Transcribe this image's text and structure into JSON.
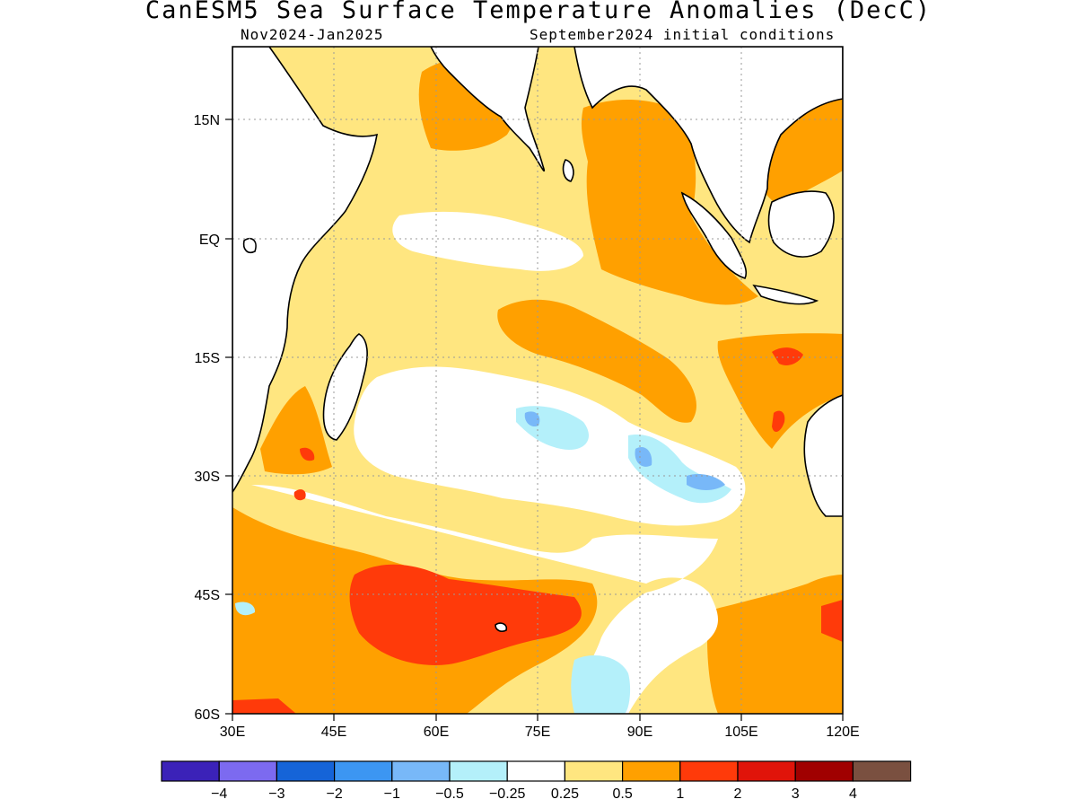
{
  "title": "CanESM5 Sea Surface Temperature Anomalies (DecC)",
  "subtitle_left": "Nov2024-Jan2025",
  "subtitle_right": "September2024 initial conditions",
  "map": {
    "lon_range": [
      30,
      120
    ],
    "lat_range": [
      -60,
      24
    ],
    "lon_ticks": [
      "30E",
      "45E",
      "60E",
      "75E",
      "90E",
      "105E",
      "120E"
    ],
    "lat_ticks": [
      "15N",
      "EQ",
      "15S",
      "30S",
      "45S",
      "60S"
    ],
    "grid": "dotted",
    "land_color": "#ffffff",
    "coastline_color": "#000000"
  },
  "colorbar": {
    "colors": [
      "#3b22b8",
      "#7c6af0",
      "#1564d8",
      "#3c96f2",
      "#78b8f8",
      "#b4f0fa",
      "#ffffff",
      "#ffe680",
      "#ffa000",
      "#ff3a0a",
      "#e0140a",
      "#a00000",
      "#7a5040"
    ],
    "labels": [
      "-4",
      "-3",
      "-2",
      "-1",
      "-0.5",
      "-0.25",
      "0.25",
      "0.5",
      "1",
      "2",
      "3",
      "4"
    ]
  },
  "legend_classes": [
    {
      "range": "<-4",
      "color": "#3b22b8"
    },
    {
      "range": "-4 to -3",
      "color": "#7c6af0"
    },
    {
      "range": "-3 to -2",
      "color": "#1564d8"
    },
    {
      "range": "-2 to -1",
      "color": "#3c96f2"
    },
    {
      "range": "-1 to -0.5",
      "color": "#78b8f8"
    },
    {
      "range": "-0.5 to -0.25",
      "color": "#b4f0fa"
    },
    {
      "range": "-0.25 to 0.25",
      "color": "#ffffff"
    },
    {
      "range": "0.25 to 0.5",
      "color": "#ffe680"
    },
    {
      "range": "0.5 to 1",
      "color": "#ffa000"
    },
    {
      "range": "1 to 2",
      "color": "#ff3a0a"
    },
    {
      "range": "2 to 3",
      "color": "#e0140a"
    },
    {
      "range": "3 to 4",
      "color": "#a00000"
    },
    {
      "range": ">4",
      "color": "#7a5040"
    }
  ]
}
